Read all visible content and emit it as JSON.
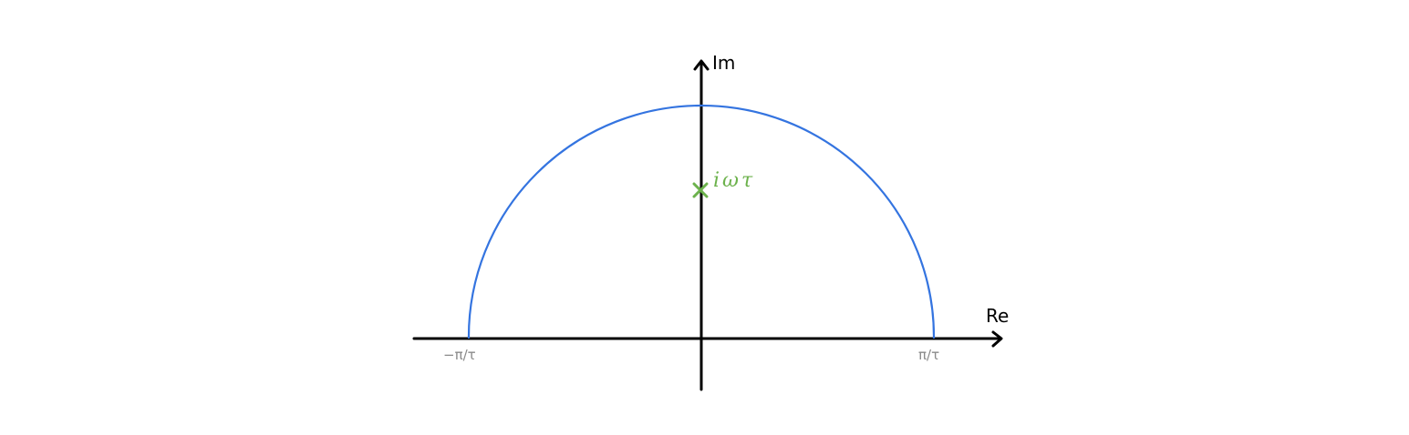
{
  "axes": {
    "real_label": "Re",
    "imag_label": "Im"
  },
  "contour": {
    "left_endpoint_label": "−π/τ",
    "right_endpoint_label": "π/τ",
    "color": "#3474e0"
  },
  "pole": {
    "label": "iωτ",
    "color": "#6cb24c"
  },
  "colors": {
    "axes": "#000000",
    "tick_labels": "#8a8a8a"
  }
}
